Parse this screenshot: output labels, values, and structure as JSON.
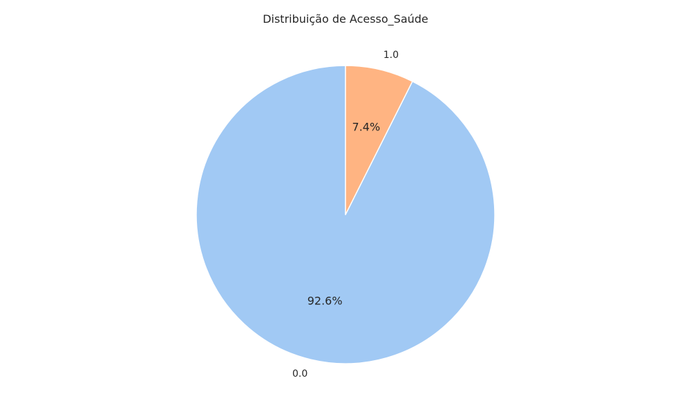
{
  "chart_data": {
    "type": "pie",
    "title": "Distribuição de Acesso_Saúde",
    "categories": [
      "0.0",
      "1.0"
    ],
    "values": [
      92.6,
      7.4
    ],
    "percent_labels": [
      "92.6%",
      "7.4%"
    ],
    "colors": [
      "#a1c9f4",
      "#ffb482"
    ],
    "start_angle_deg": 90,
    "direction": "counterclockwise",
    "edge_color": "#ffffff"
  }
}
